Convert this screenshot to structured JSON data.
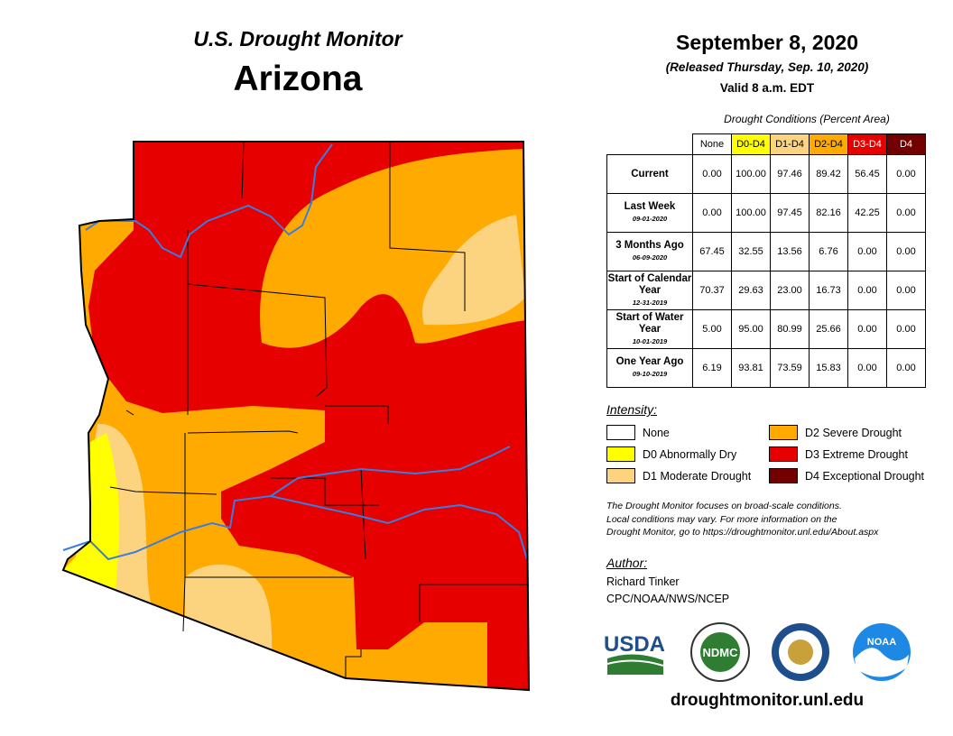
{
  "header": {
    "program": "U.S. Drought Monitor",
    "state": "Arizona"
  },
  "dates": {
    "map_date": "September 8, 2020",
    "released": "(Released Thursday, Sep. 10, 2020)",
    "valid": "Valid 8 a.m. EDT"
  },
  "table": {
    "caption": "Drought Conditions (Percent Area)",
    "columns": [
      "None",
      "D0-D4",
      "D1-D4",
      "D2-D4",
      "D3-D4",
      "D4"
    ],
    "rows": [
      {
        "label": "Current",
        "values": [
          "0.00",
          "100.00",
          "97.46",
          "89.42",
          "56.45",
          "0.00"
        ]
      },
      {
        "label": "Last Week",
        "date": "09-01-2020",
        "values": [
          "0.00",
          "100.00",
          "97.45",
          "82.16",
          "42.25",
          "0.00"
        ]
      },
      {
        "label": "3 Months Ago",
        "date": "06-09-2020",
        "values": [
          "67.45",
          "32.55",
          "13.56",
          "6.76",
          "0.00",
          "0.00"
        ]
      },
      {
        "label": "Start of Calendar Year",
        "date": "12-31-2019",
        "values": [
          "70.37",
          "29.63",
          "23.00",
          "16.73",
          "0.00",
          "0.00"
        ]
      },
      {
        "label": "Start of Water Year",
        "date": "10-01-2019",
        "values": [
          "5.00",
          "95.00",
          "80.99",
          "25.66",
          "0.00",
          "0.00"
        ]
      },
      {
        "label": "One Year Ago",
        "date": "09-10-2019",
        "values": [
          "6.19",
          "93.81",
          "73.59",
          "15.83",
          "0.00",
          "0.00"
        ]
      }
    ]
  },
  "legend": {
    "title": "Intensity:",
    "items": [
      "None",
      "D0 Abnormally Dry",
      "D1 Moderate Drought",
      "D2 Severe Drought",
      "D3 Extreme Drought",
      "D4 Exceptional Drought"
    ]
  },
  "note": [
    "The Drought Monitor focuses on broad-scale conditions.",
    "Local conditions may vary. For more information on the",
    "Drought Monitor, go to https://droughtmonitor.unl.edu/About.aspx"
  ],
  "author": {
    "heading": "Author:",
    "name": "Richard Tinker",
    "org": "CPC/NOAA/NWS/NCEP"
  },
  "logos": [
    "USDA",
    "NDMC",
    "NOAA"
  ],
  "footer": {
    "url": "droughtmonitor.unl.edu"
  }
}
